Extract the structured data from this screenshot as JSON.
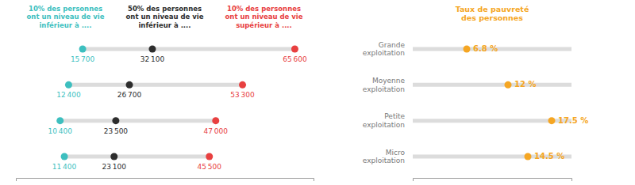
{
  "chart_data": [
    {
      "type": "dumbbell",
      "orientation": "horizontal",
      "series": [
        {
          "name": "10% des personnes\nont un niveau de vie\ninférieur à ....",
          "color": "#3dbfbf",
          "values": [
            15700,
            12400,
            10400,
            11400
          ],
          "value_labels": [
            "15 700",
            "12 400",
            "10 400",
            "11 400"
          ]
        },
        {
          "name": "50% des personnes\nont un niveau de vie\ninférieur à ....",
          "color": "#2d2d2d",
          "values": [
            32100,
            26700,
            23500,
            23100
          ],
          "value_labels": [
            "32 100",
            "26 700",
            "23 500",
            "23 100"
          ]
        },
        {
          "name": "10% des personnes\nont un niveau de vie\nsupérieur à ....",
          "color": "#e84040",
          "values": [
            65600,
            53300,
            47000,
            45500
          ],
          "value_labels": [
            "65 600",
            "53 300",
            "47 000",
            "45 500"
          ]
        }
      ],
      "xlim": [
        0,
        70000
      ],
      "data_labels": true,
      "tick_labels": false
    },
    {
      "type": "dot",
      "orientation": "horizontal",
      "title": "Taux de pauvreté\ndes personnes",
      "categories": [
        "Grande\nexploitation",
        "Moyenne\nexploitation",
        "Petite\nexploitation",
        "Micro\nexploitation"
      ],
      "values": [
        6.8,
        12,
        17.5,
        14.5
      ],
      "value_labels": [
        "6.8 %",
        "12 %",
        "17.5 %",
        "14.5 %"
      ],
      "color": "#f5a623",
      "xlim": [
        0,
        20
      ],
      "data_labels": true,
      "tick_labels": false
    }
  ]
}
